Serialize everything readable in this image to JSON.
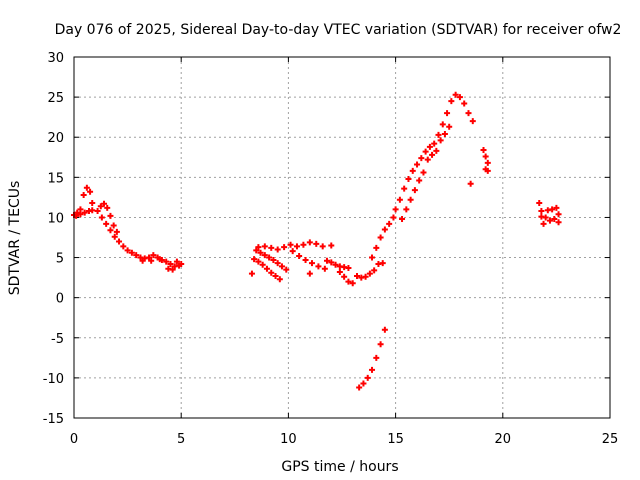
{
  "chart_data": {
    "type": "scatter",
    "title": "Day 076 of 2025, Sidereal Day-to-day VTEC variation (SDTVAR) for receiver ofw2",
    "xlabel": "GPS time / hours",
    "ylabel": "SDTVAR / TECUs",
    "xlim": [
      0,
      25
    ],
    "ylim": [
      -15,
      30
    ],
    "xticks": [
      "0",
      "5",
      "10",
      "15",
      "20",
      "25"
    ],
    "yticks": [
      "-15",
      "-10",
      "-5",
      "0",
      "5",
      "10",
      "15",
      "20",
      "25",
      "30"
    ],
    "grid": true,
    "marker": "+",
    "color": "#ff0000",
    "series": [
      {
        "name": "SDTVAR",
        "points": [
          [
            0.0,
            10.3
          ],
          [
            0.15,
            10.6
          ],
          [
            0.3,
            11.0
          ],
          [
            0.45,
            12.8
          ],
          [
            0.6,
            13.7
          ],
          [
            0.75,
            13.2
          ],
          [
            0.85,
            11.8
          ],
          [
            0.1,
            10.2
          ],
          [
            0.3,
            10.4
          ],
          [
            0.5,
            10.6
          ],
          [
            0.7,
            10.8
          ],
          [
            0.85,
            10.9
          ],
          [
            1.1,
            10.8
          ],
          [
            1.25,
            11.4
          ],
          [
            1.4,
            11.7
          ],
          [
            1.55,
            11.2
          ],
          [
            1.7,
            10.2
          ],
          [
            1.85,
            9.0
          ],
          [
            2.0,
            8.2
          ],
          [
            1.3,
            10.0
          ],
          [
            1.5,
            9.2
          ],
          [
            1.7,
            8.4
          ],
          [
            1.9,
            7.6
          ],
          [
            2.1,
            7.0
          ],
          [
            2.3,
            6.4
          ],
          [
            2.5,
            5.9
          ],
          [
            2.7,
            5.6
          ],
          [
            2.9,
            5.3
          ],
          [
            3.1,
            5.0
          ],
          [
            3.3,
            4.9
          ],
          [
            3.5,
            5.0
          ],
          [
            3.7,
            5.3
          ],
          [
            3.9,
            5.0
          ],
          [
            4.1,
            4.7
          ],
          [
            4.3,
            4.5
          ],
          [
            4.5,
            4.2
          ],
          [
            4.7,
            3.9
          ],
          [
            4.9,
            4.0
          ],
          [
            5.0,
            4.2
          ],
          [
            3.2,
            4.6
          ],
          [
            3.6,
            4.6
          ],
          [
            4.0,
            4.8
          ],
          [
            4.4,
            3.6
          ],
          [
            4.6,
            3.5
          ],
          [
            4.8,
            4.5
          ],
          [
            8.3,
            3.0
          ],
          [
            8.5,
            5.9
          ],
          [
            8.7,
            5.6
          ],
          [
            8.9,
            5.3
          ],
          [
            9.1,
            5.0
          ],
          [
            9.3,
            4.7
          ],
          [
            9.5,
            4.3
          ],
          [
            9.7,
            3.9
          ],
          [
            9.9,
            3.5
          ],
          [
            8.4,
            4.8
          ],
          [
            8.6,
            4.5
          ],
          [
            8.8,
            4.1
          ],
          [
            9.0,
            3.6
          ],
          [
            9.2,
            3.1
          ],
          [
            9.4,
            2.7
          ],
          [
            9.6,
            2.3
          ],
          [
            8.6,
            6.3
          ],
          [
            8.9,
            6.4
          ],
          [
            9.2,
            6.2
          ],
          [
            9.5,
            6.0
          ],
          [
            9.8,
            6.3
          ],
          [
            10.1,
            6.6
          ],
          [
            10.4,
            6.4
          ],
          [
            10.7,
            6.6
          ],
          [
            11.0,
            6.9
          ],
          [
            11.3,
            6.7
          ],
          [
            11.6,
            6.4
          ],
          [
            10.2,
            5.8
          ],
          [
            10.5,
            5.2
          ],
          [
            10.8,
            4.7
          ],
          [
            11.1,
            4.3
          ],
          [
            11.4,
            3.9
          ],
          [
            11.7,
            3.6
          ],
          [
            11.0,
            3.0
          ],
          [
            12.0,
            6.5
          ],
          [
            11.8,
            4.6
          ],
          [
            12.0,
            4.4
          ],
          [
            12.2,
            4.1
          ],
          [
            12.4,
            3.9
          ],
          [
            12.6,
            3.8
          ],
          [
            12.8,
            3.7
          ],
          [
            12.4,
            3.2
          ],
          [
            12.6,
            2.6
          ],
          [
            12.8,
            2.0
          ],
          [
            13.0,
            1.8
          ],
          [
            13.2,
            2.7
          ],
          [
            13.4,
            2.5
          ],
          [
            13.6,
            2.6
          ],
          [
            13.8,
            3.0
          ],
          [
            14.0,
            3.4
          ],
          [
            14.2,
            4.2
          ],
          [
            14.4,
            4.3
          ],
          [
            13.9,
            5.0
          ],
          [
            14.1,
            6.2
          ],
          [
            14.3,
            7.5
          ],
          [
            14.5,
            8.5
          ],
          [
            14.7,
            9.2
          ],
          [
            14.9,
            10.0
          ],
          [
            15.0,
            11.0
          ],
          [
            13.3,
            -11.2
          ],
          [
            13.5,
            -10.7
          ],
          [
            13.7,
            -10.0
          ],
          [
            13.9,
            -9.0
          ],
          [
            14.1,
            -7.5
          ],
          [
            14.3,
            -5.8
          ],
          [
            14.5,
            -4.0
          ],
          [
            15.2,
            12.2
          ],
          [
            15.4,
            13.6
          ],
          [
            15.6,
            14.8
          ],
          [
            15.8,
            15.8
          ],
          [
            16.0,
            16.6
          ],
          [
            16.2,
            17.4
          ],
          [
            16.4,
            18.2
          ],
          [
            16.6,
            18.8
          ],
          [
            16.8,
            19.2
          ],
          [
            17.0,
            20.3
          ],
          [
            17.2,
            21.6
          ],
          [
            17.4,
            23.0
          ],
          [
            17.6,
            24.5
          ],
          [
            17.8,
            25.3
          ],
          [
            18.0,
            25.0
          ],
          [
            18.2,
            24.2
          ],
          [
            18.4,
            23.0
          ],
          [
            18.6,
            22.0
          ],
          [
            18.5,
            14.2
          ],
          [
            15.3,
            9.8
          ],
          [
            15.5,
            11.0
          ],
          [
            15.7,
            12.2
          ],
          [
            15.9,
            13.4
          ],
          [
            16.1,
            14.6
          ],
          [
            16.3,
            15.6
          ],
          [
            16.5,
            17.2
          ],
          [
            16.7,
            17.8
          ],
          [
            16.9,
            18.3
          ],
          [
            17.1,
            19.6
          ],
          [
            17.3,
            20.4
          ],
          [
            17.5,
            21.3
          ],
          [
            19.1,
            18.4
          ],
          [
            19.2,
            17.6
          ],
          [
            19.3,
            16.8
          ],
          [
            19.2,
            16.0
          ],
          [
            19.3,
            15.8
          ],
          [
            21.7,
            11.8
          ],
          [
            21.8,
            10.8
          ],
          [
            22.0,
            10.0
          ],
          [
            22.2,
            9.6
          ],
          [
            22.4,
            9.8
          ],
          [
            22.6,
            10.4
          ],
          [
            22.5,
            11.2
          ],
          [
            21.9,
            9.2
          ],
          [
            22.1,
            10.9
          ],
          [
            22.3,
            11.0
          ],
          [
            21.8,
            10.1
          ],
          [
            22.6,
            9.4
          ]
        ]
      }
    ]
  }
}
